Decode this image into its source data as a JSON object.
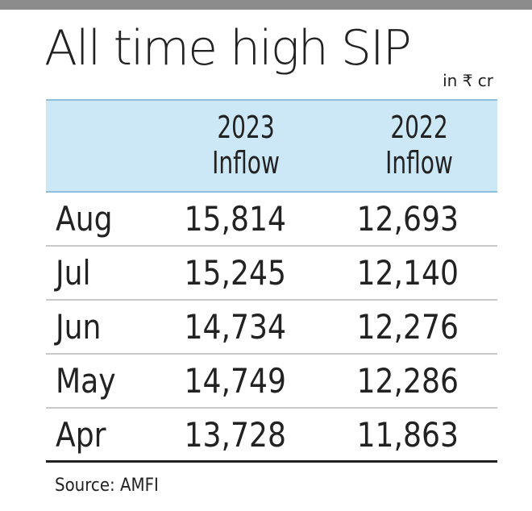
{
  "title": "All time high SIP",
  "unit": "in ₹ cr",
  "source": "Source: AMFI",
  "colors": {
    "top_bar": "#8c8c8c",
    "header_band": "#cce7f5",
    "header_rule": "#8fbfdc",
    "row_rule": "#c9c9c9",
    "text": "#222222"
  },
  "chart_data": {
    "type": "table",
    "title": "All time high SIP",
    "unit": "in ₹ cr",
    "columns": [
      {
        "year": "2023",
        "label": "Inflow"
      },
      {
        "year": "2022",
        "label": "Inflow"
      }
    ],
    "rows": [
      {
        "month": "Aug",
        "v2023": "15,814",
        "v2022": "12,693"
      },
      {
        "month": "Jul",
        "v2023": "15,245",
        "v2022": "12,140"
      },
      {
        "month": "Jun",
        "v2023": "14,734",
        "v2022": "12,276"
      },
      {
        "month": "May",
        "v2023": "14,749",
        "v2022": "12,286"
      },
      {
        "month": "Apr",
        "v2023": "13,728",
        "v2022": "11,863"
      }
    ],
    "series": [
      {
        "name": "2023 Inflow",
        "values": [
          15814,
          15245,
          14734,
          14749,
          13728
        ]
      },
      {
        "name": "2022 Inflow",
        "values": [
          12693,
          12140,
          12276,
          12286,
          11863
        ]
      }
    ],
    "categories": [
      "Aug",
      "Jul",
      "Jun",
      "May",
      "Apr"
    ],
    "source": "Source: AMFI"
  }
}
